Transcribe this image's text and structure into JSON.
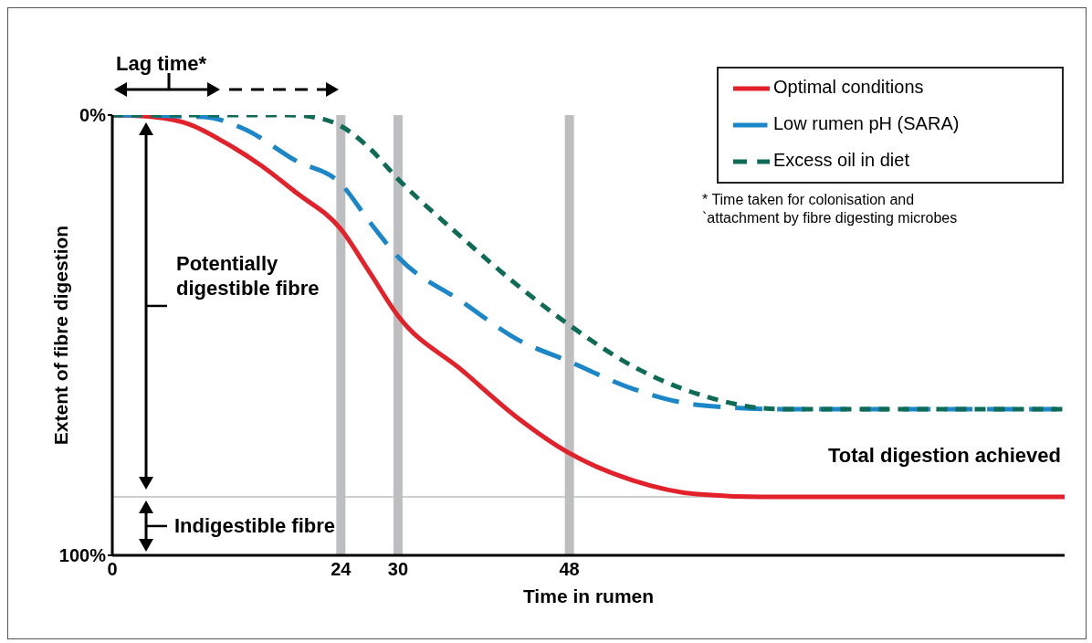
{
  "chart_data": {
    "type": "line",
    "xlabel": "Time in rumen",
    "ylabel": "Extent of fibre digestion",
    "xlim": [
      0,
      100
    ],
    "xticks": [
      0,
      24,
      30,
      48
    ],
    "ylim": [
      100,
      0
    ],
    "yticks": [
      {
        "value": 0,
        "label": "0%"
      },
      {
        "value": 100,
        "label": "100%"
      }
    ],
    "grid": false,
    "legend": "top right",
    "marker": "none",
    "series": [
      {
        "name": "Optimal conditions",
        "color": "#e3212b",
        "line_style": "solid",
        "x": [
          0,
          4.3,
          8.1,
          11.8,
          15.6,
          19.3,
          24,
          26.9,
          30,
          36.8,
          42.4,
          48,
          54.7,
          61.4,
          68.1,
          100
        ],
        "values": [
          0,
          0.4,
          2.1,
          6.2,
          11.4,
          17.6,
          25.9,
          35.3,
          45.6,
          58.1,
          68.5,
          76.8,
          83,
          86.1,
          86.7,
          86.7
        ]
      },
      {
        "name": "Low rumen pH (SARA)",
        "color": "#1b87c9",
        "line_style": "dashed",
        "x": [
          0,
          9.6,
          13.8,
          19.3,
          24,
          26.9,
          30,
          36.8,
          42.4,
          48,
          54.7,
          61.4,
          70.3,
          100
        ],
        "values": [
          0,
          0.4,
          3.1,
          10.4,
          15.6,
          23.9,
          32.2,
          42.5,
          50.8,
          56,
          62.2,
          65.8,
          66.8,
          66.8
        ]
      },
      {
        "name": "Excess oil in diet",
        "color": "#0d6b56",
        "line_style": "dotted",
        "x": [
          0,
          18.5,
          22.3,
          24,
          26.9,
          30,
          36.8,
          42.4,
          48,
          54.7,
          61.4,
          70.3,
          100
        ],
        "values": [
          0,
          0,
          1,
          2.5,
          7.3,
          14.5,
          28,
          38.4,
          47.7,
          57.1,
          63.3,
          66.8,
          66.8
        ]
      }
    ],
    "ref_lines": [
      {
        "axis": "x",
        "value": 24,
        "color": "#bcbec0"
      },
      {
        "axis": "x",
        "value": 30,
        "color": "#bcbec0"
      },
      {
        "axis": "x",
        "value": 48,
        "color": "#bcbec0"
      },
      {
        "axis": "y",
        "value": 86.7,
        "label": "Total digestion achieved",
        "color": "#bcbec0"
      }
    ],
    "annotations": [
      "Lag time*",
      "Potentially digestible fibre",
      "Indigestible fibre",
      "* Time taken for colonisation and `attachment by fibre digesting microbes"
    ]
  }
}
